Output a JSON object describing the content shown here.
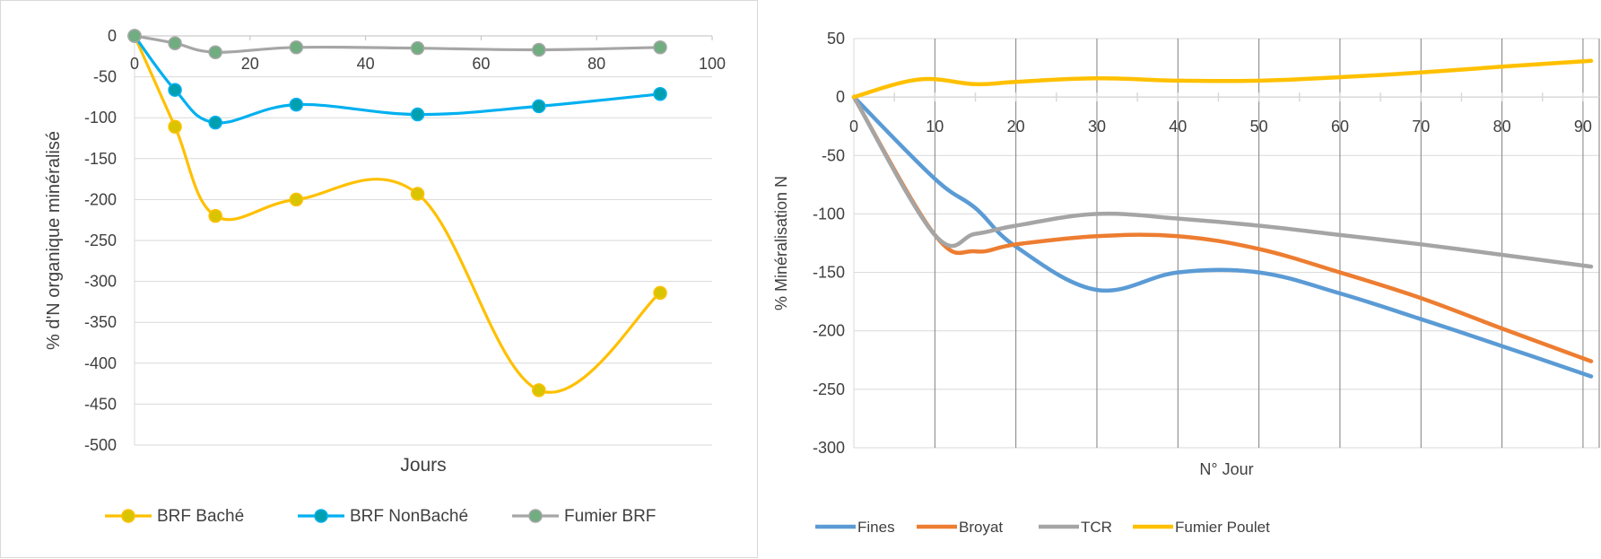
{
  "chart_data": [
    {
      "type": "line",
      "title": "",
      "xlabel": "Jours",
      "ylabel": "% d'N organique minéralisé",
      "xlim": [
        0,
        100
      ],
      "ylim": [
        -500,
        0
      ],
      "xticks": [
        0,
        20,
        40,
        60,
        80,
        100
      ],
      "yticks": [
        0,
        -50,
        -100,
        -150,
        -200,
        -250,
        -300,
        -350,
        -400,
        -450,
        -500
      ],
      "grid": "horizontal",
      "legend": "bottom",
      "series": [
        {
          "name": "BRF Baché",
          "color": "#ffc000",
          "markerFill": "#d9c400",
          "x": [
            0,
            7,
            14,
            28,
            49,
            70,
            91
          ],
          "y": [
            0,
            -111,
            -220,
            -200,
            -193,
            -433,
            -314
          ]
        },
        {
          "name": "BRF NonBaché",
          "color": "#00b0f0",
          "markerFill": "#00a0b0",
          "x": [
            0,
            7,
            14,
            28,
            49,
            70,
            91
          ],
          "y": [
            0,
            -66,
            -106,
            -84,
            -96,
            -86,
            -71
          ]
        },
        {
          "name": "Fumier BRF",
          "color": "#a6a6a6",
          "markerFill": "#70ad80",
          "x": [
            0,
            7,
            14,
            28,
            49,
            70,
            91
          ],
          "y": [
            0,
            -9,
            -20,
            -14,
            -15,
            -17,
            -14
          ]
        }
      ]
    },
    {
      "type": "line",
      "title": "",
      "xlabel": "N° Jour",
      "ylabel": "% Minéralisation N",
      "xlim": [
        0,
        92
      ],
      "ylim": [
        -300,
        50
      ],
      "xticks": [
        0,
        10,
        20,
        30,
        40,
        50,
        60,
        70,
        80,
        90
      ],
      "yticks": [
        50,
        0,
        -50,
        -100,
        -150,
        -200,
        -250,
        -300
      ],
      "grid": "both",
      "legend": "bottom",
      "series": [
        {
          "name": "Fines",
          "color": "#5b9bd5",
          "x": [
            0,
            10,
            15,
            20,
            30,
            40,
            50,
            60,
            70,
            80,
            91
          ],
          "y": [
            0,
            -70,
            -95,
            -128,
            -165,
            -150,
            -150,
            -168,
            -190,
            -213,
            -239
          ]
        },
        {
          "name": "Broyat",
          "color": "#ed7d31",
          "x": [
            0,
            10,
            15,
            20,
            30,
            40,
            50,
            60,
            70,
            80,
            91
          ],
          "y": [
            0,
            -118,
            -132,
            -126,
            -119,
            -119,
            -130,
            -150,
            -172,
            -198,
            -226
          ]
        },
        {
          "name": "TCR",
          "color": "#a5a5a5",
          "x": [
            0,
            10,
            15,
            20,
            30,
            40,
            50,
            60,
            70,
            80,
            91
          ],
          "y": [
            0,
            -118,
            -117,
            -110,
            -100,
            -104,
            -110,
            -118,
            -126,
            -135,
            -145
          ]
        },
        {
          "name": "Fumier Poulet",
          "color": "#ffc000",
          "x": [
            0,
            8,
            15,
            20,
            30,
            40,
            50,
            60,
            70,
            80,
            91
          ],
          "y": [
            0,
            15,
            11,
            13,
            16,
            14,
            14,
            17,
            21,
            26,
            31
          ]
        }
      ]
    }
  ]
}
